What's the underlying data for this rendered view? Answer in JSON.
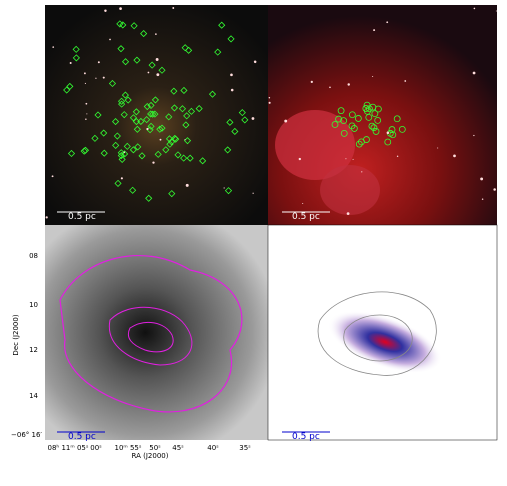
{
  "panels": [
    {
      "scale_bar": "0.5 pc"
    },
    {
      "scale_bar": "0.5 pc"
    },
    {
      "scale_bar": "0.5 pc"
    },
    {
      "scale_bar": "0.5 pc"
    }
  ],
  "axes": {
    "y_label": "Dec (J2000)",
    "y_ticks": [
      "08",
      "10",
      "12",
      "14",
      "−06° 16′"
    ],
    "x_label": "RA (J2000)",
    "x_ticks": [
      "08ʰ 11ᵐ 05ˢ",
      "00ˢ",
      "10ᵐ 55ˢ",
      "50ˢ",
      "45ˢ",
      "40ˢ",
      "35ˢ"
    ]
  }
}
